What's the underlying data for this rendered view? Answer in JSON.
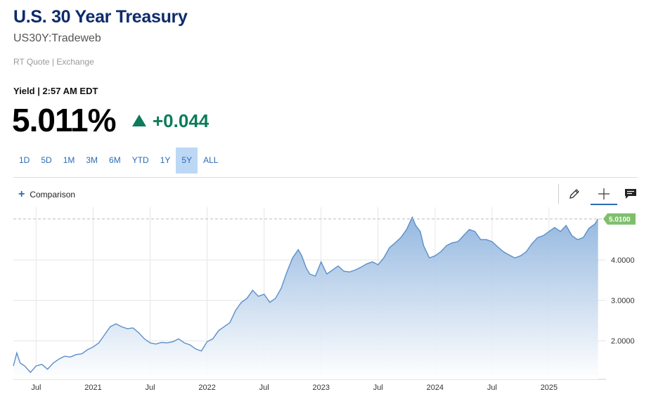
{
  "header": {
    "title": "U.S. 30 Year Treasury",
    "symbol": "US30Y:Tradeweb",
    "rt_quote": "RT Quote | Exchange"
  },
  "quote": {
    "yield_line": "Yield | 2:57 AM EDT",
    "price": "5.011%",
    "change": "+0.044",
    "change_color": "#0c7c5a"
  },
  "ranges": [
    "1D",
    "5D",
    "1M",
    "3M",
    "6M",
    "YTD",
    "1Y",
    "5Y",
    "ALL"
  ],
  "active_range": "5Y",
  "toolbar": {
    "comparison_label": "Comparison",
    "icons": [
      "pencil-icon",
      "crosshair-icon",
      "comment-icon"
    ]
  },
  "chart_data": {
    "type": "area",
    "line_color": "#5b8fc9",
    "last_value_label": "5.0100",
    "last_value_color": "#7ebf6b",
    "y_ticks": [
      "2.0000",
      "3.0000",
      "4.0000"
    ],
    "y_tick_values": [
      2,
      3,
      4
    ],
    "x_ticks": [
      "Jul",
      "2021",
      "Jul",
      "2022",
      "Jul",
      "2023",
      "Jul",
      "2024",
      "Jul",
      "2025"
    ],
    "x_tick_values": [
      2020.5,
      2021.0,
      2021.5,
      2022.0,
      2022.5,
      2023.0,
      2023.5,
      2024.0,
      2024.5,
      2025.0
    ],
    "xlim": [
      2020.3,
      2025.5
    ],
    "ylim": [
      1.05,
      5.3
    ],
    "grid": true,
    "x": [
      2020.3,
      2020.33,
      2020.36,
      2020.4,
      2020.45,
      2020.5,
      2020.55,
      2020.6,
      2020.65,
      2020.7,
      2020.75,
      2020.8,
      2020.85,
      2020.9,
      2020.95,
      2021.0,
      2021.05,
      2021.1,
      2021.15,
      2021.2,
      2021.25,
      2021.3,
      2021.35,
      2021.4,
      2021.45,
      2021.5,
      2021.55,
      2021.6,
      2021.65,
      2021.7,
      2021.75,
      2021.8,
      2021.85,
      2021.9,
      2021.95,
      2022.0,
      2022.05,
      2022.1,
      2022.15,
      2022.2,
      2022.25,
      2022.3,
      2022.35,
      2022.4,
      2022.45,
      2022.5,
      2022.55,
      2022.6,
      2022.65,
      2022.7,
      2022.75,
      2022.8,
      2022.83,
      2022.87,
      2022.9,
      2022.95,
      2023.0,
      2023.05,
      2023.1,
      2023.15,
      2023.2,
      2023.25,
      2023.3,
      2023.35,
      2023.4,
      2023.45,
      2023.5,
      2023.55,
      2023.6,
      2023.65,
      2023.7,
      2023.75,
      2023.8,
      2023.83,
      2023.87,
      2023.9,
      2023.95,
      2024.0,
      2024.05,
      2024.1,
      2024.15,
      2024.2,
      2024.25,
      2024.3,
      2024.35,
      2024.4,
      2024.45,
      2024.5,
      2024.55,
      2024.6,
      2024.65,
      2024.7,
      2024.75,
      2024.8,
      2024.85,
      2024.9,
      2024.95,
      2025.0,
      2025.05,
      2025.1,
      2025.15,
      2025.2,
      2025.25,
      2025.3,
      2025.35,
      2025.4,
      2025.43
    ],
    "y": [
      1.38,
      1.7,
      1.45,
      1.38,
      1.22,
      1.38,
      1.42,
      1.3,
      1.45,
      1.55,
      1.62,
      1.6,
      1.66,
      1.68,
      1.78,
      1.85,
      1.95,
      2.15,
      2.35,
      2.42,
      2.35,
      2.3,
      2.32,
      2.2,
      2.05,
      1.95,
      1.92,
      1.96,
      1.95,
      1.98,
      2.05,
      1.95,
      1.9,
      1.8,
      1.75,
      1.98,
      2.05,
      2.25,
      2.35,
      2.45,
      2.75,
      2.95,
      3.05,
      3.25,
      3.1,
      3.15,
      2.95,
      3.05,
      3.3,
      3.7,
      4.05,
      4.25,
      4.1,
      3.8,
      3.65,
      3.6,
      3.95,
      3.65,
      3.75,
      3.85,
      3.72,
      3.7,
      3.75,
      3.82,
      3.9,
      3.95,
      3.88,
      4.05,
      4.3,
      4.42,
      4.55,
      4.75,
      5.05,
      4.85,
      4.7,
      4.35,
      4.05,
      4.1,
      4.2,
      4.35,
      4.42,
      4.45,
      4.6,
      4.75,
      4.7,
      4.5,
      4.5,
      4.45,
      4.32,
      4.2,
      4.12,
      4.05,
      4.1,
      4.2,
      4.4,
      4.55,
      4.6,
      4.7,
      4.8,
      4.7,
      4.85,
      4.6,
      4.5,
      4.55,
      4.78,
      4.88,
      5.01
    ]
  }
}
